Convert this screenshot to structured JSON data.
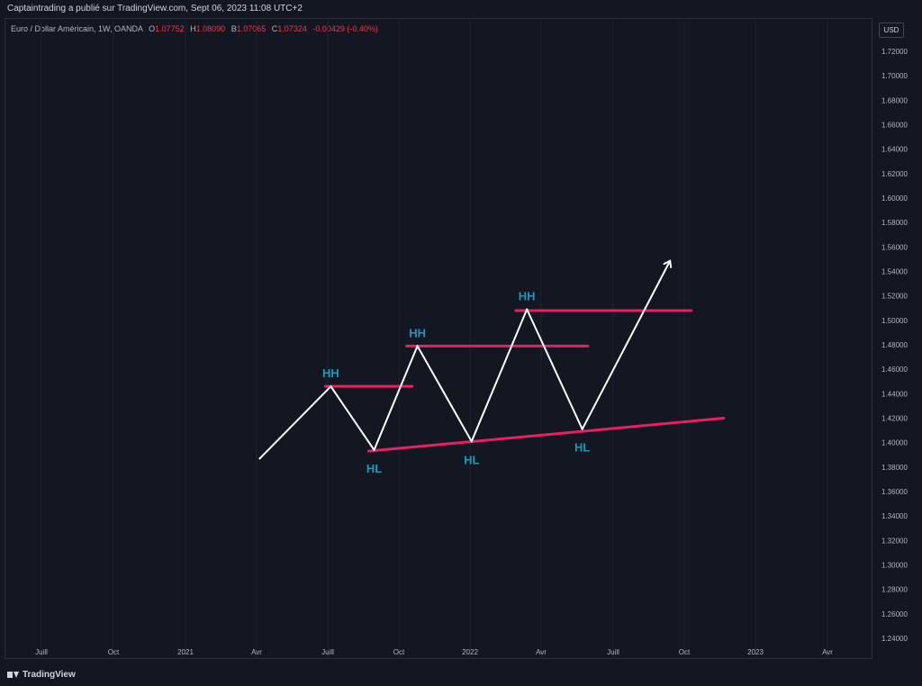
{
  "header": {
    "publisher": "Captaintrading a publié sur TradingView.com, Sept 06, 2023 11:08 UTC+2"
  },
  "legend": {
    "symbol": "Euro / Dollar Américain, 1W, OANDA",
    "o_label": "O",
    "o_value": "1.07752",
    "h_label": "H",
    "h_value": "1.08090",
    "b_label": "B",
    "b_value": "1.07065",
    "c_label": "C",
    "c_value": "1.07324",
    "change": "-0.00429 (-0.40%)"
  },
  "currency": "USD",
  "footer": {
    "brand": "TradingView"
  },
  "colors": {
    "background": "#131722",
    "grid": "#1f2330",
    "zigzag": "#ffffff",
    "levels": "#e91e63",
    "annotation": "#2196b8",
    "axis_text": "#b2b5be"
  },
  "chart_data": {
    "type": "line",
    "xlabel": "",
    "ylabel": "",
    "grid": "vertical",
    "x_ticks": [
      "Juill",
      "Oct",
      "2021",
      "Avr",
      "Juill",
      "Oct",
      "2022",
      "Avr",
      "Juill",
      "Oct",
      "2023",
      "Avr"
    ],
    "y_ticks": [
      "1.24000",
      "1.26000",
      "1.28000",
      "1.30000",
      "1.32000",
      "1.34000",
      "1.36000",
      "1.38000",
      "1.40000",
      "1.42000",
      "1.44000",
      "1.46000",
      "1.48000",
      "1.50000",
      "1.52000",
      "1.54000",
      "1.56000",
      "1.58000",
      "1.60000",
      "1.62000",
      "1.64000",
      "1.66000",
      "1.68000",
      "1.70000",
      "1.72000"
    ],
    "ylim": [
      1.23,
      1.735
    ],
    "series": [
      {
        "x": [
          "2021-04-05",
          "2021-07-05",
          "2021-08-30",
          "2021-10-25",
          "2022-01-03",
          "2022-03-14",
          "2022-05-23",
          "2022-09-12"
        ],
        "y": [
          1.387,
          1.446,
          1.394,
          1.479,
          1.401,
          1.509,
          1.411,
          1.548
        ]
      }
    ],
    "levels": [
      {
        "x": [
          "2021-06-28",
          "2021-10-18"
        ],
        "y": [
          1.446,
          1.446
        ]
      },
      {
        "x": [
          "2021-10-11",
          "2022-05-30"
        ],
        "y": [
          1.479,
          1.479
        ]
      },
      {
        "x": [
          "2022-02-28",
          "2022-10-10"
        ],
        "y": [
          1.508,
          1.508
        ]
      },
      {
        "x": [
          "2021-08-23",
          "2022-11-21"
        ],
        "y": [
          1.393,
          1.42
        ]
      }
    ],
    "annotations": [
      {
        "text": "HH",
        "x": "2021-07-05",
        "y": 1.446,
        "position": "above"
      },
      {
        "text": "HL",
        "x": "2021-08-30",
        "y": 1.394,
        "position": "below"
      },
      {
        "text": "HH",
        "x": "2021-10-25",
        "y": 1.479,
        "position": "above"
      },
      {
        "text": "HL",
        "x": "2022-01-03",
        "y": 1.401,
        "position": "below"
      },
      {
        "text": "HH",
        "x": "2022-03-14",
        "y": 1.509,
        "position": "above"
      },
      {
        "text": "HL",
        "x": "2022-05-23",
        "y": 1.411,
        "position": "below"
      }
    ],
    "arrow_end": "final point of series"
  }
}
